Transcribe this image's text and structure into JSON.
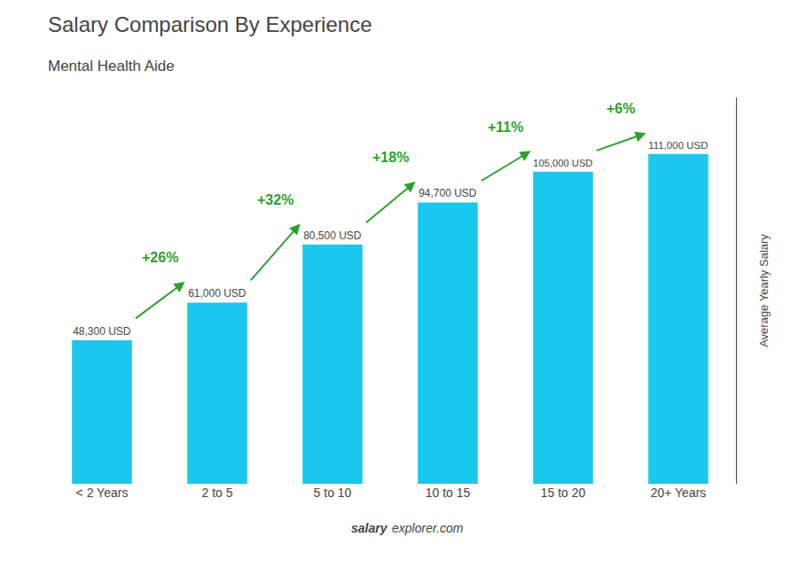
{
  "chart_data": {
    "type": "bar",
    "title": "Salary Comparison By Experience",
    "subtitle": "Mental Health Aide",
    "categories": [
      "< 2 Years",
      "2 to 5",
      "5 to 10",
      "10 to 15",
      "15 to 20",
      "20+ Years"
    ],
    "values": [
      48300,
      61000,
      80500,
      94700,
      105000,
      111000
    ],
    "value_labels": [
      "48,300 USD",
      "61,000 USD",
      "80,500 USD",
      "94,700 USD",
      "105,000 USD",
      "111,000 USD"
    ],
    "data_labels": true,
    "annotations": [
      "+26%",
      "+32%",
      "+18%",
      "+11%",
      "+6%"
    ],
    "color": "#1ac8ed",
    "ylabel": "Average Yearly Salary",
    "ylim": [
      0,
      130000
    ],
    "yticks": [],
    "tick_labels": "x",
    "grid": false,
    "footer": [
      "salary",
      "explorer.com"
    ]
  }
}
